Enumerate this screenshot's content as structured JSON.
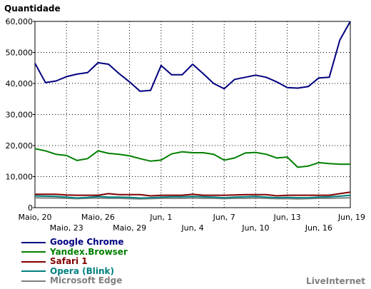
{
  "chart_data": {
    "type": "line",
    "ylabel": "Quantidade",
    "ylim": [
      0,
      60000
    ],
    "yticks": [
      0,
      10000,
      20000,
      30000,
      40000,
      50000,
      60000
    ],
    "ytick_labels": [
      "0",
      "10,000",
      "20,000",
      "30,000",
      "40,000",
      "50,000",
      "60,000"
    ],
    "xticks_top": [
      "Maio, 20",
      "Maio, 26",
      "Jun, 1",
      "Jun, 7",
      "Jun, 13",
      "Jun, 19"
    ],
    "xticks_bottom": [
      "Maio, 23",
      "Maio, 29",
      "Jun, 4",
      "Jun, 10",
      "Jun, 16"
    ],
    "x": [
      "Maio, 20",
      "Maio, 21",
      "Maio, 22",
      "Maio, 23",
      "Maio, 24",
      "Maio, 25",
      "Maio, 26",
      "Maio, 27",
      "Maio, 28",
      "Maio, 29",
      "Maio, 30",
      "Maio, 31",
      "Jun, 1",
      "Jun, 2",
      "Jun, 3",
      "Jun, 4",
      "Jun, 5",
      "Jun, 6",
      "Jun, 7",
      "Jun, 8",
      "Jun, 9",
      "Jun, 10",
      "Jun, 11",
      "Jun, 12",
      "Jun, 13",
      "Jun, 14",
      "Jun, 15",
      "Jun, 16",
      "Jun, 17",
      "Jun, 18",
      "Jun, 19"
    ],
    "grid": true,
    "legend_position": "bottom-left",
    "series": [
      {
        "name": "Google Chrome",
        "color": "#000080",
        "values": [
          46500,
          40300,
          40800,
          42200,
          43000,
          43500,
          46700,
          46200,
          43200,
          40500,
          37500,
          37800,
          45800,
          42800,
          42800,
          46200,
          43200,
          40000,
          38300,
          41300,
          42000,
          42700,
          42000,
          40500,
          38700,
          38500,
          39000,
          41800,
          42000,
          54000,
          60000
        ]
      },
      {
        "name": "Yandex.Browser",
        "color": "#008000",
        "values": [
          19000,
          18300,
          17200,
          16800,
          15200,
          15800,
          18300,
          17500,
          17200,
          16700,
          15800,
          15000,
          15300,
          17300,
          18000,
          17700,
          17700,
          17200,
          15300,
          16000,
          17600,
          17800,
          17200,
          16000,
          16300,
          13000,
          13400,
          14500,
          14200,
          14000,
          14000
        ]
      },
      {
        "name": "Safari 1",
        "color": "#800000",
        "values": [
          4300,
          4300,
          4300,
          4100,
          4000,
          4000,
          4000,
          4500,
          4200,
          4200,
          4200,
          3800,
          4000,
          4000,
          4000,
          4300,
          4000,
          4000,
          4000,
          4100,
          4200,
          4200,
          4200,
          3800,
          4000,
          4000,
          4000,
          4000,
          4000,
          4500,
          5000
        ]
      },
      {
        "name": "Opera (Blink)",
        "color": "#008080",
        "values": [
          3800,
          3700,
          3600,
          3400,
          3100,
          3300,
          3600,
          3400,
          3400,
          3300,
          3100,
          3200,
          3400,
          3500,
          3500,
          3600,
          3500,
          3400,
          3200,
          3400,
          3500,
          3600,
          3400,
          3200,
          3300,
          3200,
          3200,
          3400,
          3500,
          3700,
          4000
        ]
      },
      {
        "name": "Microsoft Edge",
        "color": "#808080",
        "values": [
          3200,
          3100,
          3100,
          3000,
          2900,
          3000,
          3100,
          3000,
          3000,
          2900,
          2800,
          2900,
          3000,
          3000,
          3000,
          3100,
          3000,
          3000,
          2900,
          3000,
          3000,
          3100,
          3000,
          2900,
          2900,
          2800,
          2900,
          3000,
          3000,
          3100,
          3200
        ]
      }
    ]
  },
  "credit": "LiveInternet"
}
